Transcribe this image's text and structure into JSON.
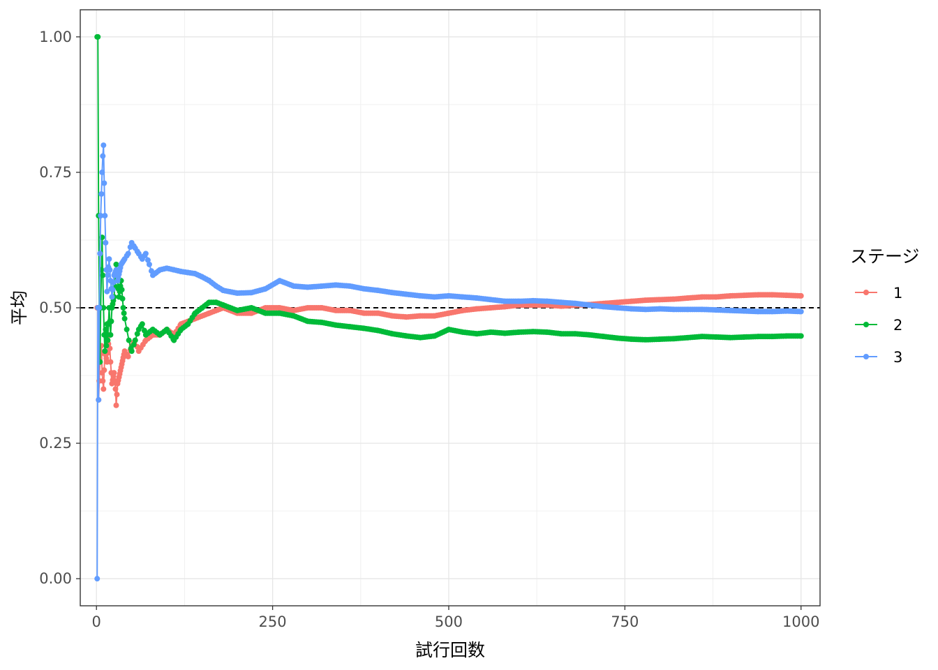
{
  "chart_data": {
    "type": "line",
    "title": "",
    "xlabel": "試行回数",
    "ylabel": "平均",
    "xlim": [
      -23,
      1027
    ],
    "ylim": [
      -0.05,
      1.05
    ],
    "x_ticks": [
      0,
      250,
      500,
      750,
      1000
    ],
    "x_tick_labels": [
      "0",
      "250",
      "500",
      "750",
      "1000"
    ],
    "y_ticks": [
      0,
      0.25,
      0.5,
      0.75,
      1
    ],
    "y_tick_labels": [
      "0.00",
      "0.25",
      "0.50",
      "0.75",
      "1.00"
    ],
    "grid": true,
    "reference_line": {
      "y": 0.5,
      "style": "dashed",
      "color": "#000000"
    },
    "legend": {
      "title": "ステージ",
      "position": "right"
    },
    "series": [
      {
        "name": "1",
        "color": "#F8766D",
        "points": [
          [
            1,
            0.5
          ],
          [
            2,
            0.5
          ],
          [
            3,
            0.33
          ],
          [
            5,
            0.4
          ],
          [
            7,
            0.43
          ],
          [
            8,
            0.38
          ],
          [
            10,
            0.35
          ],
          [
            12,
            0.42
          ],
          [
            15,
            0.4
          ],
          [
            18,
            0.45
          ],
          [
            20,
            0.4
          ],
          [
            22,
            0.36
          ],
          [
            25,
            0.38
          ],
          [
            27,
            0.35
          ],
          [
            28,
            0.32
          ],
          [
            30,
            0.36
          ],
          [
            35,
            0.39
          ],
          [
            40,
            0.42
          ],
          [
            45,
            0.41
          ],
          [
            50,
            0.43
          ],
          [
            55,
            0.44
          ],
          [
            60,
            0.42
          ],
          [
            70,
            0.44
          ],
          [
            80,
            0.45
          ],
          [
            90,
            0.45
          ],
          [
            100,
            0.46
          ],
          [
            110,
            0.45
          ],
          [
            120,
            0.47
          ],
          [
            140,
            0.48
          ],
          [
            160,
            0.49
          ],
          [
            180,
            0.5
          ],
          [
            200,
            0.49
          ],
          [
            220,
            0.49
          ],
          [
            240,
            0.5
          ],
          [
            260,
            0.5
          ],
          [
            280,
            0.495
          ],
          [
            300,
            0.5
          ],
          [
            320,
            0.5
          ],
          [
            340,
            0.495
          ],
          [
            360,
            0.495
          ],
          [
            380,
            0.49
          ],
          [
            400,
            0.49
          ],
          [
            420,
            0.485
          ],
          [
            440,
            0.483
          ],
          [
            460,
            0.485
          ],
          [
            480,
            0.485
          ],
          [
            500,
            0.49
          ],
          [
            520,
            0.495
          ],
          [
            540,
            0.498
          ],
          [
            560,
            0.5
          ],
          [
            580,
            0.502
          ],
          [
            600,
            0.505
          ],
          [
            620,
            0.505
          ],
          [
            640,
            0.505
          ],
          [
            660,
            0.503
          ],
          [
            680,
            0.505
          ],
          [
            700,
            0.506
          ],
          [
            720,
            0.508
          ],
          [
            740,
            0.51
          ],
          [
            760,
            0.512
          ],
          [
            780,
            0.514
          ],
          [
            800,
            0.515
          ],
          [
            820,
            0.516
          ],
          [
            840,
            0.518
          ],
          [
            860,
            0.52
          ],
          [
            880,
            0.52
          ],
          [
            900,
            0.522
          ],
          [
            920,
            0.523
          ],
          [
            940,
            0.524
          ],
          [
            960,
            0.524
          ],
          [
            980,
            0.523
          ],
          [
            1000,
            0.522
          ]
        ]
      },
      {
        "name": "2",
        "color": "#00BA38",
        "points": [
          [
            1,
            1.0
          ],
          [
            2,
            1.0
          ],
          [
            3,
            0.67
          ],
          [
            4,
            0.5
          ],
          [
            5,
            0.4
          ],
          [
            6,
            0.5
          ],
          [
            7,
            0.57
          ],
          [
            8,
            0.63
          ],
          [
            9,
            0.56
          ],
          [
            10,
            0.5
          ],
          [
            11,
            0.45
          ],
          [
            12,
            0.42
          ],
          [
            13,
            0.46
          ],
          [
            14,
            0.43
          ],
          [
            15,
            0.47
          ],
          [
            16,
            0.44
          ],
          [
            18,
            0.5
          ],
          [
            20,
            0.45
          ],
          [
            22,
            0.5
          ],
          [
            25,
            0.52
          ],
          [
            28,
            0.58
          ],
          [
            30,
            0.55
          ],
          [
            32,
            0.52
          ],
          [
            35,
            0.55
          ],
          [
            38,
            0.5
          ],
          [
            40,
            0.48
          ],
          [
            43,
            0.46
          ],
          [
            46,
            0.44
          ],
          [
            50,
            0.42
          ],
          [
            55,
            0.44
          ],
          [
            60,
            0.46
          ],
          [
            65,
            0.47
          ],
          [
            70,
            0.45
          ],
          [
            80,
            0.46
          ],
          [
            90,
            0.45
          ],
          [
            100,
            0.46
          ],
          [
            110,
            0.44
          ],
          [
            120,
            0.46
          ],
          [
            130,
            0.47
          ],
          [
            140,
            0.49
          ],
          [
            150,
            0.5
          ],
          [
            160,
            0.51
          ],
          [
            170,
            0.51
          ],
          [
            180,
            0.505
          ],
          [
            200,
            0.495
          ],
          [
            220,
            0.5
          ],
          [
            240,
            0.49
          ],
          [
            260,
            0.49
          ],
          [
            280,
            0.485
          ],
          [
            300,
            0.475
          ],
          [
            320,
            0.473
          ],
          [
            340,
            0.468
          ],
          [
            360,
            0.465
          ],
          [
            380,
            0.462
          ],
          [
            400,
            0.458
          ],
          [
            420,
            0.452
          ],
          [
            440,
            0.448
          ],
          [
            460,
            0.445
          ],
          [
            480,
            0.448
          ],
          [
            500,
            0.46
          ],
          [
            520,
            0.455
          ],
          [
            540,
            0.452
          ],
          [
            560,
            0.455
          ],
          [
            580,
            0.453
          ],
          [
            600,
            0.455
          ],
          [
            620,
            0.456
          ],
          [
            640,
            0.455
          ],
          [
            660,
            0.452
          ],
          [
            680,
            0.452
          ],
          [
            700,
            0.45
          ],
          [
            720,
            0.447
          ],
          [
            740,
            0.444
          ],
          [
            760,
            0.442
          ],
          [
            780,
            0.441
          ],
          [
            800,
            0.442
          ],
          [
            820,
            0.443
          ],
          [
            840,
            0.445
          ],
          [
            860,
            0.447
          ],
          [
            880,
            0.446
          ],
          [
            900,
            0.445
          ],
          [
            920,
            0.446
          ],
          [
            940,
            0.447
          ],
          [
            960,
            0.447
          ],
          [
            980,
            0.448
          ],
          [
            1000,
            0.448
          ]
        ]
      },
      {
        "name": "3",
        "color": "#619CFF",
        "points": [
          [
            1,
            0.0
          ],
          [
            2,
            0.5
          ],
          [
            3,
            0.33
          ],
          [
            4,
            0.5
          ],
          [
            5,
            0.6
          ],
          [
            6,
            0.67
          ],
          [
            7,
            0.71
          ],
          [
            8,
            0.75
          ],
          [
            9,
            0.78
          ],
          [
            10,
            0.8
          ],
          [
            11,
            0.73
          ],
          [
            12,
            0.67
          ],
          [
            13,
            0.62
          ],
          [
            14,
            0.57
          ],
          [
            15,
            0.53
          ],
          [
            16,
            0.56
          ],
          [
            18,
            0.59
          ],
          [
            20,
            0.55
          ],
          [
            22,
            0.52
          ],
          [
            25,
            0.56
          ],
          [
            28,
            0.57
          ],
          [
            30,
            0.55
          ],
          [
            35,
            0.58
          ],
          [
            40,
            0.59
          ],
          [
            45,
            0.6
          ],
          [
            50,
            0.62
          ],
          [
            55,
            0.61
          ],
          [
            60,
            0.6
          ],
          [
            65,
            0.59
          ],
          [
            70,
            0.6
          ],
          [
            75,
            0.58
          ],
          [
            80,
            0.56
          ],
          [
            85,
            0.565
          ],
          [
            90,
            0.57
          ],
          [
            100,
            0.573
          ],
          [
            110,
            0.57
          ],
          [
            120,
            0.567
          ],
          [
            130,
            0.565
          ],
          [
            140,
            0.563
          ],
          [
            150,
            0.557
          ],
          [
            160,
            0.55
          ],
          [
            170,
            0.54
          ],
          [
            180,
            0.532
          ],
          [
            200,
            0.527
          ],
          [
            220,
            0.528
          ],
          [
            240,
            0.535
          ],
          [
            260,
            0.55
          ],
          [
            280,
            0.54
          ],
          [
            300,
            0.538
          ],
          [
            320,
            0.54
          ],
          [
            340,
            0.542
          ],
          [
            360,
            0.54
          ],
          [
            380,
            0.535
          ],
          [
            400,
            0.532
          ],
          [
            420,
            0.528
          ],
          [
            440,
            0.525
          ],
          [
            460,
            0.522
          ],
          [
            480,
            0.52
          ],
          [
            500,
            0.522
          ],
          [
            520,
            0.52
          ],
          [
            540,
            0.518
          ],
          [
            560,
            0.515
          ],
          [
            580,
            0.512
          ],
          [
            600,
            0.512
          ],
          [
            620,
            0.513
          ],
          [
            640,
            0.512
          ],
          [
            660,
            0.51
          ],
          [
            680,
            0.508
          ],
          [
            700,
            0.505
          ],
          [
            720,
            0.502
          ],
          [
            740,
            0.5
          ],
          [
            760,
            0.498
          ],
          [
            780,
            0.497
          ],
          [
            800,
            0.498
          ],
          [
            820,
            0.497
          ],
          [
            840,
            0.497
          ],
          [
            860,
            0.497
          ],
          [
            880,
            0.496
          ],
          [
            900,
            0.495
          ],
          [
            920,
            0.494
          ],
          [
            940,
            0.493
          ],
          [
            960,
            0.493
          ],
          [
            980,
            0.494
          ],
          [
            1000,
            0.493
          ]
        ]
      }
    ]
  }
}
